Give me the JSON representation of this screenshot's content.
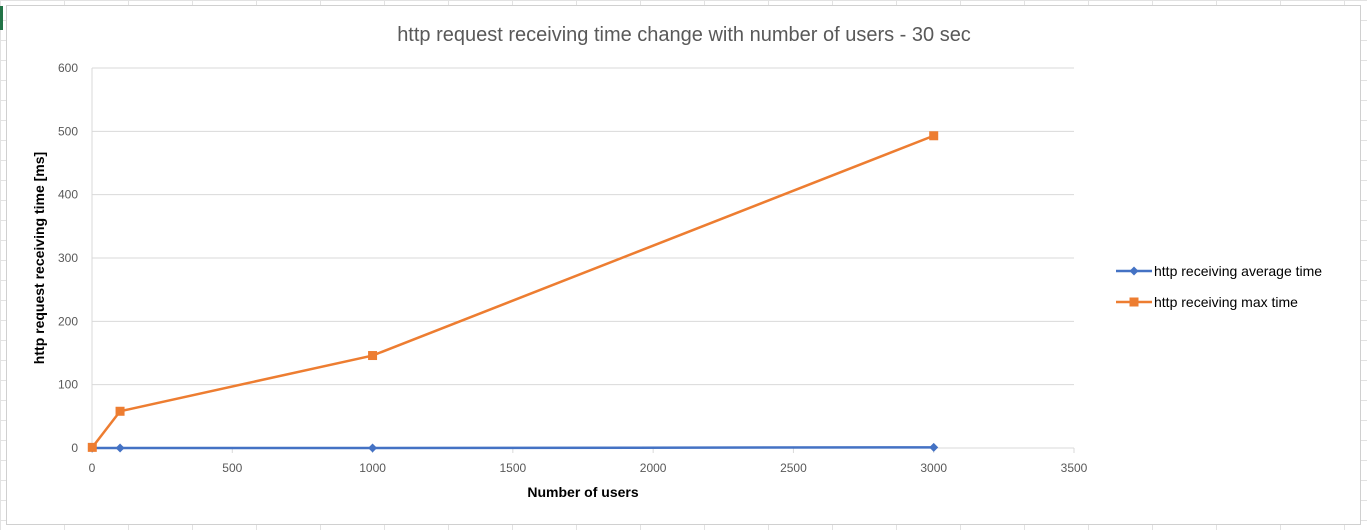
{
  "chart_data": {
    "type": "line",
    "title": "http request receiving time change with number of users - 30 sec",
    "xlabel": "Number of users",
    "ylabel": "http request receiving time [ms]",
    "xlim": [
      0,
      3500
    ],
    "ylim": [
      0,
      600
    ],
    "x_ticks": [
      0,
      500,
      1000,
      1500,
      2000,
      2500,
      3000,
      3500
    ],
    "y_ticks": [
      0,
      100,
      200,
      300,
      400,
      500,
      600
    ],
    "grid": true,
    "legend_position": "right",
    "series": [
      {
        "name": "http receiving average time",
        "color": "#4472C4",
        "marker": "diamond",
        "x": [
          1,
          100,
          1000,
          3000
        ],
        "y": [
          0,
          0,
          0,
          1
        ]
      },
      {
        "name": "http receiving max time",
        "color": "#ED7D31",
        "marker": "square",
        "x": [
          1,
          100,
          1000,
          3000
        ],
        "y": [
          1,
          58,
          146,
          493
        ]
      }
    ]
  }
}
